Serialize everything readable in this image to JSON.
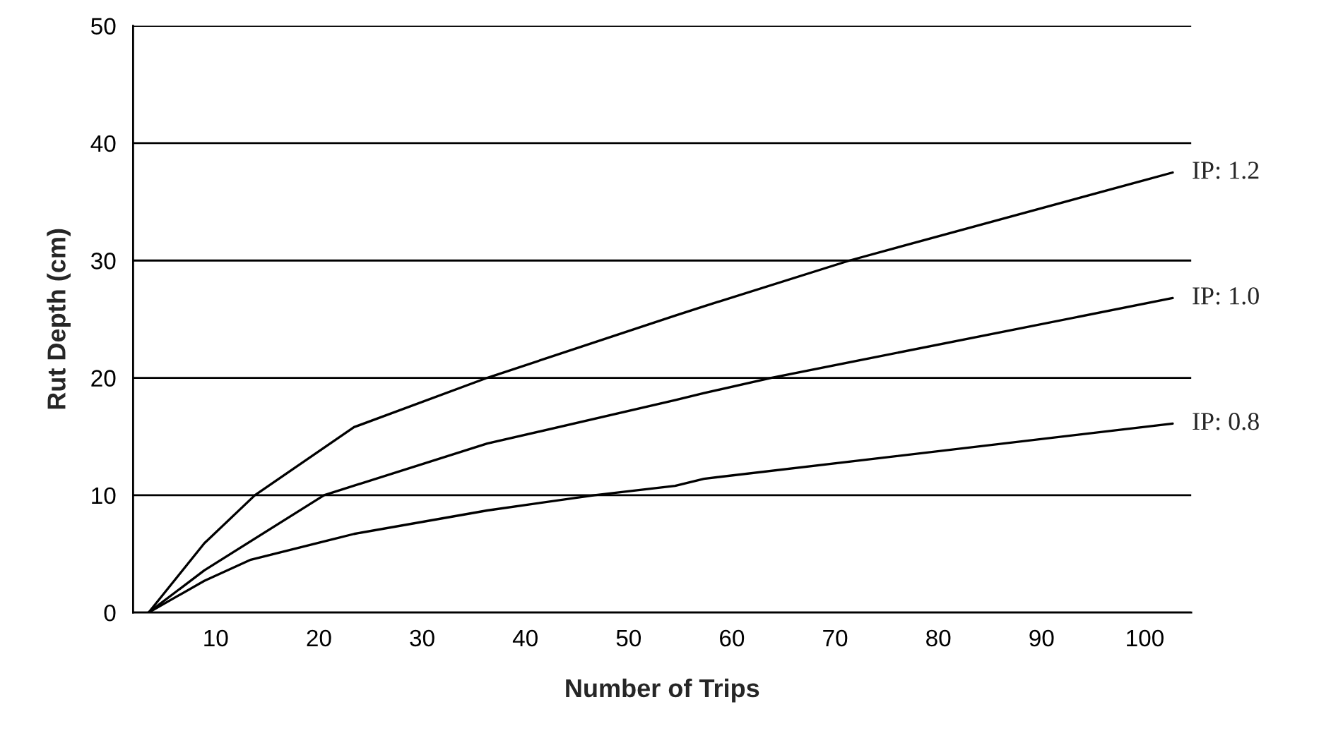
{
  "chart_data": {
    "type": "line",
    "xlabel": "Number of Trips",
    "ylabel": "Rut Depth (cm)",
    "xlim": [
      2,
      104.5
    ],
    "xticks": [
      10,
      20,
      30,
      40,
      50,
      60,
      70,
      80,
      90,
      100
    ],
    "ylim": [
      0,
      50
    ],
    "yticks": [
      0,
      10,
      20,
      30,
      40,
      50
    ],
    "grid": "y",
    "series": [
      {
        "name": "IP: 1.2",
        "color": "#000000",
        "x": [
          3.5,
          8.9,
          13.8,
          23.4,
          36.3,
          54.5,
          57.3,
          71.4,
          102.7
        ],
        "values": [
          0,
          5.9,
          10,
          15.8,
          20,
          25.3,
          26.1,
          30,
          37.5
        ]
      },
      {
        "name": "IP: 1.0",
        "color": "#000000",
        "x": [
          3.5,
          8.9,
          20.5,
          36.3,
          54.5,
          57.3,
          63.8,
          102.7
        ],
        "values": [
          0,
          3.6,
          10,
          14.4,
          18.1,
          18.7,
          20,
          26.8
        ]
      },
      {
        "name": "IP: 0.8",
        "color": "#000000",
        "x": [
          3.5,
          8.9,
          13.4,
          23.4,
          36.3,
          46.7,
          54.5,
          57.3,
          102.7
        ],
        "values": [
          0,
          2.7,
          4.5,
          6.7,
          8.7,
          10,
          10.8,
          11.4,
          16.1
        ]
      }
    ]
  }
}
